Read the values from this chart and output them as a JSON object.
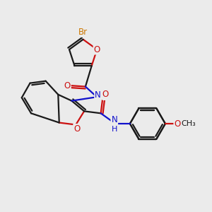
{
  "background_color": "#ebebeb",
  "bond_color": "#1a1a1a",
  "oxygen_color": "#cc1111",
  "nitrogen_color": "#1111cc",
  "bromine_color": "#cc7700",
  "bond_lw": 1.6,
  "dbo": 0.1,
  "figsize": [
    3.0,
    3.0
  ],
  "dpi": 100,
  "xlim": [
    0,
    10
  ],
  "ylim": [
    0,
    10
  ]
}
